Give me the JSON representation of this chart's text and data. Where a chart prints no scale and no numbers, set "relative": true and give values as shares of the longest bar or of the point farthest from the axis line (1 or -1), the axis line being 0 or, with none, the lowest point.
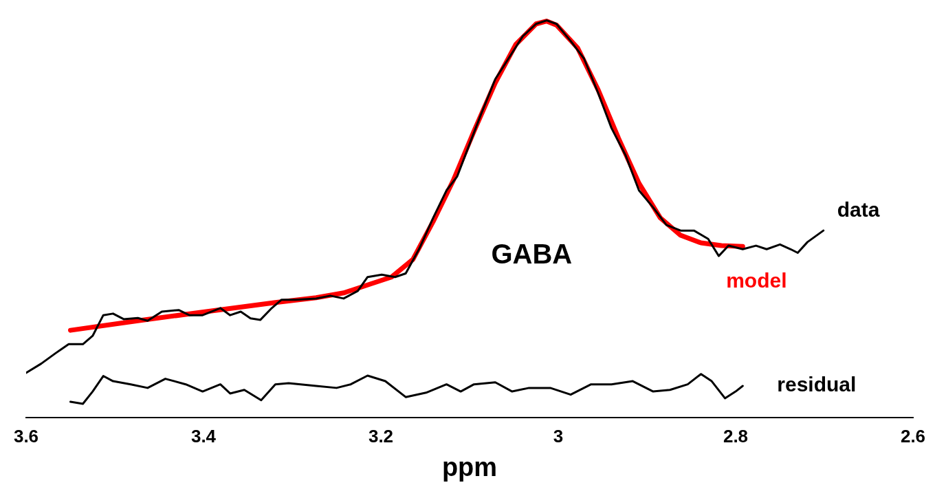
{
  "chart_data": {
    "type": "line",
    "xlabel": "ppm",
    "relative": true,
    "xlim": [
      3.6,
      2.6
    ],
    "xticks": [
      3.6,
      3.4,
      3.2,
      3,
      2.8,
      2.6
    ],
    "grid": false,
    "legend": false,
    "marker": "none",
    "line_style": "solid",
    "annotations": [
      "GABA"
    ],
    "series": [
      {
        "name": "data",
        "color": "#000000",
        "x": [
          3.6,
          3.583,
          3.567,
          3.552,
          3.536,
          3.525,
          3.513,
          3.502,
          3.49,
          3.474,
          3.463,
          3.447,
          3.428,
          3.416,
          3.401,
          3.381,
          3.37,
          3.358,
          3.347,
          3.336,
          3.323,
          3.312,
          3.296,
          3.273,
          3.257,
          3.242,
          3.226,
          3.215,
          3.199,
          3.184,
          3.172,
          3.157,
          3.141,
          3.126,
          3.114,
          3.102,
          3.087,
          3.071,
          3.056,
          3.04,
          3.025,
          3.013,
          3.002,
          2.986,
          2.971,
          2.955,
          2.94,
          2.924,
          2.909,
          2.893,
          2.878,
          2.862,
          2.847,
          2.831,
          2.819,
          2.808,
          2.792,
          2.777,
          2.765,
          2.75,
          2.738,
          2.73,
          2.719,
          2.701
        ],
        "values": [
          0.113,
          0.136,
          0.162,
          0.185,
          0.185,
          0.206,
          0.258,
          0.262,
          0.248,
          0.251,
          0.244,
          0.267,
          0.271,
          0.258,
          0.258,
          0.276,
          0.258,
          0.267,
          0.25,
          0.246,
          0.276,
          0.297,
          0.297,
          0.3,
          0.307,
          0.3,
          0.319,
          0.354,
          0.36,
          0.354,
          0.363,
          0.424,
          0.503,
          0.572,
          0.607,
          0.677,
          0.764,
          0.852,
          0.904,
          0.96,
          0.991,
          1,
          0.991,
          0.948,
          0.904,
          0.817,
          0.729,
          0.66,
          0.572,
          0.529,
          0.485,
          0.471,
          0.471,
          0.45,
          0.407,
          0.433,
          0.424,
          0.433,
          0.424,
          0.436,
          0.424,
          0.415,
          0.442,
          0.471
        ]
      },
      {
        "name": "model",
        "color": "#ff0000",
        "x": [
          3.55,
          3.474,
          3.397,
          3.319,
          3.273,
          3.242,
          3.211,
          3.188,
          3.164,
          3.141,
          3.118,
          3.095,
          3.071,
          3.048,
          3.025,
          3.013,
          3.002,
          2.978,
          2.955,
          2.932,
          2.909,
          2.885,
          2.862,
          2.839,
          2.816,
          2.792
        ],
        "values": [
          0.22,
          0.244,
          0.267,
          0.29,
          0.302,
          0.314,
          0.337,
          0.354,
          0.398,
          0.494,
          0.599,
          0.721,
          0.843,
          0.939,
          0.991,
          0.998,
          0.988,
          0.93,
          0.825,
          0.703,
          0.59,
          0.503,
          0.459,
          0.44,
          0.433,
          0.431
        ]
      },
      {
        "name": "residual",
        "color": "#000000",
        "x": [
          3.55,
          3.536,
          3.525,
          3.513,
          3.502,
          3.482,
          3.463,
          3.443,
          3.42,
          3.401,
          3.381,
          3.37,
          3.354,
          3.335,
          3.319,
          3.304,
          3.273,
          3.25,
          3.234,
          3.215,
          3.195,
          3.172,
          3.149,
          3.126,
          3.11,
          3.095,
          3.071,
          3.052,
          3.033,
          3.009,
          2.986,
          2.963,
          2.94,
          2.916,
          2.893,
          2.874,
          2.854,
          2.839,
          2.827,
          2.812,
          2.8,
          2.792
        ],
        "values": [
          0.04,
          0.035,
          0.066,
          0.105,
          0.092,
          0.084,
          0.075,
          0.098,
          0.084,
          0.066,
          0.084,
          0.061,
          0.07,
          0.044,
          0.084,
          0.087,
          0.08,
          0.075,
          0.084,
          0.106,
          0.092,
          0.052,
          0.063,
          0.084,
          0.066,
          0.084,
          0.089,
          0.066,
          0.075,
          0.075,
          0.058,
          0.084,
          0.084,
          0.092,
          0.066,
          0.07,
          0.084,
          0.11,
          0.092,
          0.049,
          0.066,
          0.08
        ]
      }
    ]
  }
}
